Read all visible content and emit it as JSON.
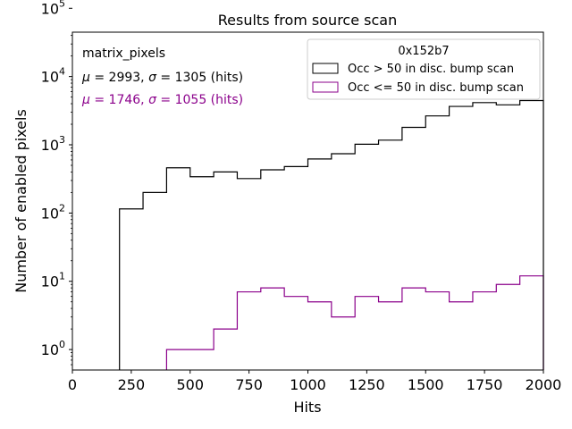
{
  "chart_data": {
    "type": "histogram",
    "title": "Results from source scan",
    "xlabel": "Hits",
    "ylabel": "Number of enabled pixels",
    "xlim": [
      0,
      2000
    ],
    "ylim_log10": [
      -0.3,
      4.65
    ],
    "yscale": "log",
    "xticks": [
      {
        "value": 0,
        "label": "0"
      },
      {
        "value": 250,
        "label": "250"
      },
      {
        "value": 500,
        "label": "500"
      },
      {
        "value": 750,
        "label": "750"
      },
      {
        "value": 1000,
        "label": "1000"
      },
      {
        "value": 1250,
        "label": "1250"
      },
      {
        "value": 1500,
        "label": "1500"
      },
      {
        "value": 1750,
        "label": "1750"
      },
      {
        "value": 2000,
        "label": "2000"
      }
    ],
    "yticks": [
      {
        "value": 1,
        "base": "10",
        "exp": "0"
      },
      {
        "value": 10,
        "base": "10",
        "exp": "1"
      },
      {
        "value": 100,
        "base": "10",
        "exp": "2"
      },
      {
        "value": 1000,
        "base": "10",
        "exp": "3"
      },
      {
        "value": 10000,
        "base": "10",
        "exp": "4"
      },
      {
        "value": 100000,
        "base": "10",
        "exp": "5"
      }
    ],
    "bin_edges": [
      200,
      300,
      400,
      500,
      600,
      700,
      800,
      900,
      1000,
      1100,
      1200,
      1300,
      1400,
      1500,
      1600,
      1700,
      1800,
      1900,
      2000
    ],
    "series": [
      {
        "name": "Occ > 50 in disc. bump scan",
        "color": "#000000",
        "values": [
          115,
          200,
          460,
          340,
          400,
          320,
          430,
          480,
          620,
          740,
          1020,
          1170,
          1800,
          2650,
          3650,
          4150,
          3850,
          4450
        ]
      },
      {
        "name": "Occ <= 50 in disc. bump scan",
        "color": "#8b008b",
        "values": [
          0,
          0,
          1,
          1,
          2,
          7,
          8,
          6,
          5,
          3,
          6,
          5,
          8,
          7,
          5,
          7,
          9,
          12
        ]
      }
    ],
    "legend": {
      "title": "0x152b7",
      "position": "top-right"
    },
    "annotations": {
      "label": "matrix_pixels",
      "stats1": {
        "mu_symbol": "μ",
        "mu_val": " = 2993, ",
        "sigma_symbol": "σ",
        "sigma_val": " = 1305 (hits)",
        "color": "#000000"
      },
      "stats2": {
        "mu_symbol": "μ",
        "mu_val": " = 1746, ",
        "sigma_symbol": "σ",
        "sigma_val": " = 1055 (hits)",
        "color": "#8b008b"
      }
    }
  }
}
